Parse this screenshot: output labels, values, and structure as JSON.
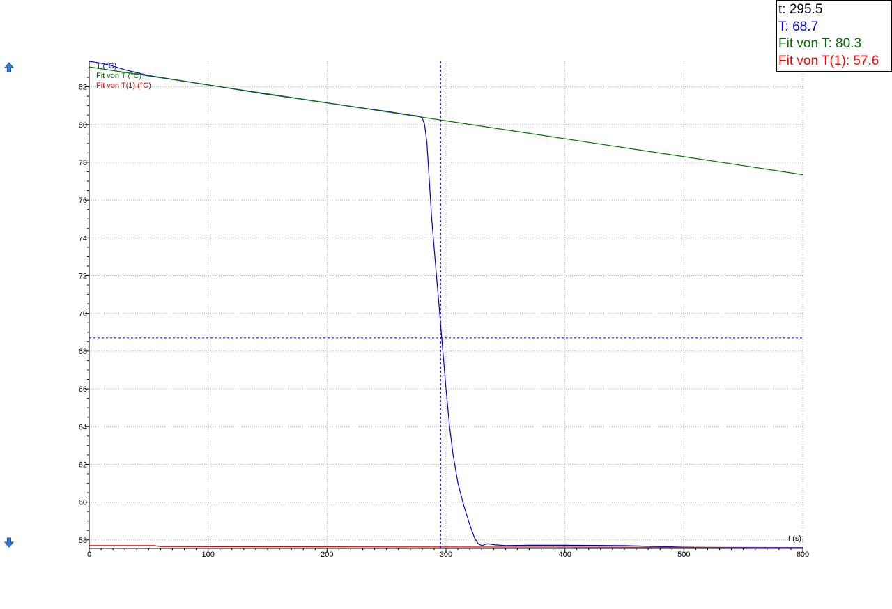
{
  "scroll_buttons": {
    "up_icon": "arrow-up-icon",
    "down_icon": "arrow-down-icon"
  },
  "readout": [
    {
      "label": "t",
      "value": "295.5",
      "color": "#000000"
    },
    {
      "label": "T",
      "value": "68.7",
      "color": "#0000ff"
    },
    {
      "label": "Fit von T",
      "value": "80.3",
      "color": "#007000"
    },
    {
      "label": "Fit von T(1)",
      "value": "57.6",
      "color": "#ff0000"
    }
  ],
  "chart_data": {
    "type": "line",
    "title": "",
    "xlabel": "t (s)",
    "ylabel": "",
    "xlim": [
      0,
      600
    ],
    "ylim": [
      57.55,
      83.35
    ],
    "xticks": [
      0,
      100,
      200,
      300,
      400,
      500,
      600
    ],
    "yticks": [
      58,
      60,
      62,
      64,
      66,
      68,
      70,
      72,
      74,
      76,
      78,
      80,
      82
    ],
    "grid": true,
    "legend_position": "top-left",
    "cursor": {
      "x": 295.5,
      "y": 68.7
    },
    "series": [
      {
        "name": "T (°C)",
        "color": "#0000c8",
        "points": [
          [
            0,
            83.35
          ],
          [
            10,
            83.25
          ],
          [
            20,
            83.1
          ],
          [
            30,
            82.9
          ],
          [
            50,
            82.6
          ],
          [
            75,
            82.35
          ],
          [
            100,
            82.1
          ],
          [
            125,
            81.85
          ],
          [
            150,
            81.6
          ],
          [
            175,
            81.38
          ],
          [
            200,
            81.15
          ],
          [
            225,
            80.92
          ],
          [
            250,
            80.7
          ],
          [
            270,
            80.5
          ],
          [
            277,
            80.45
          ],
          [
            280,
            80.35
          ],
          [
            282,
            80.0
          ],
          [
            284,
            79.0
          ],
          [
            286,
            77.0
          ],
          [
            288,
            75.0
          ],
          [
            290,
            73.5
          ],
          [
            292,
            72.0
          ],
          [
            294,
            70.5
          ],
          [
            296,
            69.0
          ],
          [
            298,
            67.5
          ],
          [
            300,
            66.0
          ],
          [
            303,
            64.0
          ],
          [
            306,
            62.5
          ],
          [
            310,
            61.0
          ],
          [
            315,
            59.8
          ],
          [
            320,
            58.8
          ],
          [
            324,
            58.1
          ],
          [
            327,
            57.8
          ],
          [
            330,
            57.7
          ],
          [
            335,
            57.8
          ],
          [
            340,
            57.75
          ],
          [
            350,
            57.7
          ],
          [
            370,
            57.72
          ],
          [
            400,
            57.72
          ],
          [
            450,
            57.7
          ],
          [
            500,
            57.62
          ],
          [
            550,
            57.58
          ],
          [
            600,
            57.56
          ]
        ]
      },
      {
        "name": "Fit von T (°C)",
        "color": "#007000",
        "points": [
          [
            0,
            83.05
          ],
          [
            600,
            77.35
          ]
        ]
      },
      {
        "name": "Fit von T(1) (°C)",
        "color": "#e00000",
        "points": [
          [
            0,
            57.7
          ],
          [
            55,
            57.7
          ],
          [
            60,
            57.65
          ],
          [
            600,
            57.6
          ]
        ]
      }
    ]
  }
}
